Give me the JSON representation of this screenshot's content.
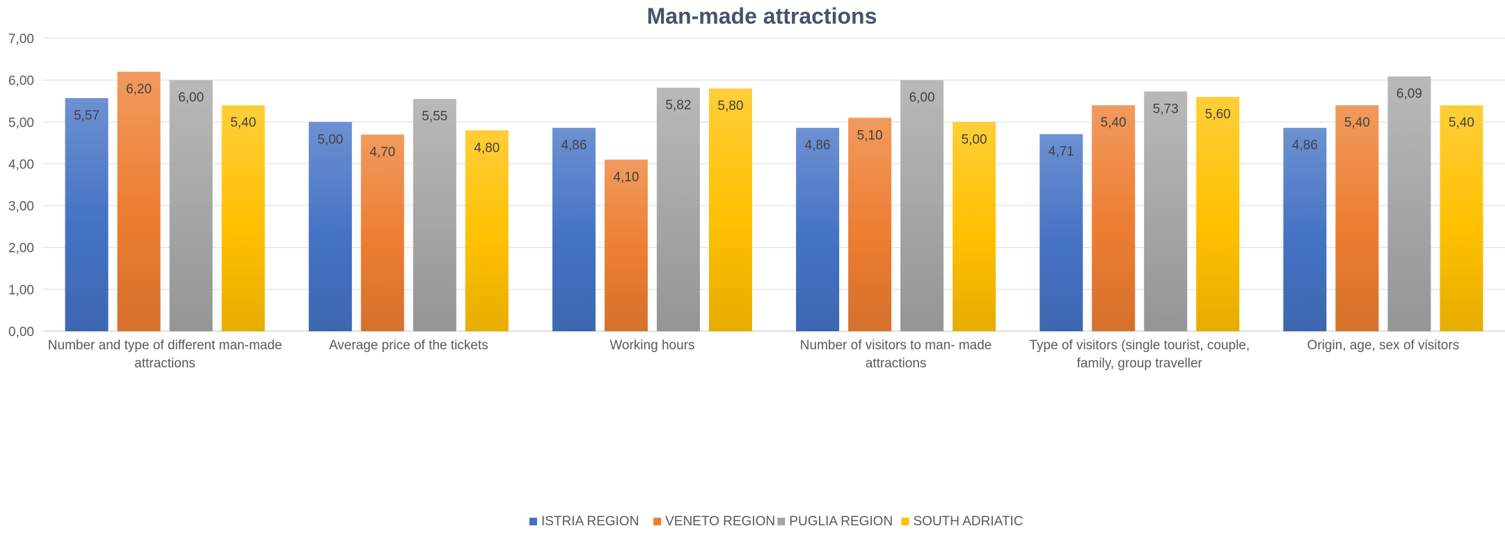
{
  "chart_data": {
    "type": "bar",
    "title": "Man-made attractions",
    "xlabel": "",
    "ylabel": "",
    "ylim": [
      0,
      7
    ],
    "yticks": [
      "0,00",
      "1,00",
      "2,00",
      "3,00",
      "4,00",
      "5,00",
      "6,00",
      "7,00"
    ],
    "grid": true,
    "legend_position": "bottom",
    "categories": [
      [
        "Number and type of different man-made",
        "attractions"
      ],
      [
        "Average price of the tickets"
      ],
      [
        "Working hours"
      ],
      [
        "Number of visitors to man- made",
        "attractions"
      ],
      [
        "Type of visitors (single tourist, couple,",
        "family, group traveller"
      ],
      [
        "Origin, age, sex of visitors"
      ]
    ],
    "series": [
      {
        "name": "ISTRIA REGION",
        "color": "#4472c4",
        "values": [
          5.57,
          5.0,
          4.86,
          4.86,
          4.71,
          4.86
        ],
        "labels": [
          "5,57",
          "5,00",
          "4,86",
          "4,86",
          "4,71",
          "4,86"
        ]
      },
      {
        "name": "VENETO REGION",
        "color": "#ed7d31",
        "values": [
          6.2,
          4.7,
          4.1,
          5.1,
          5.4,
          5.4
        ],
        "labels": [
          "6,20",
          "4,70",
          "4,10",
          "5,10",
          "5,40",
          "5,40"
        ]
      },
      {
        "name": "PUGLIA REGION",
        "color": "#a5a5a5",
        "values": [
          6.0,
          5.55,
          5.82,
          6.0,
          5.73,
          6.09
        ],
        "labels": [
          "6,00",
          "5,55",
          "5,82",
          "6,00",
          "5,73",
          "6,09"
        ]
      },
      {
        "name": "SOUTH ADRIATIC",
        "color": "#ffc000",
        "values": [
          5.4,
          4.8,
          5.8,
          5.0,
          5.6,
          5.4
        ],
        "labels": [
          "5,40",
          "4,80",
          "5,80",
          "5,00",
          "5,60",
          "5,40"
        ]
      }
    ]
  }
}
